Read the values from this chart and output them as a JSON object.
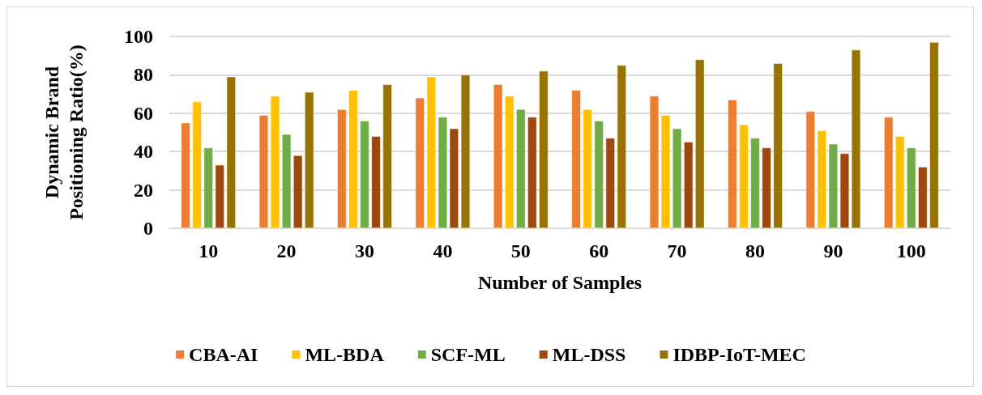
{
  "chart_data": {
    "type": "bar",
    "xlabel": "Number of Samples",
    "ylabel": "Dynamic Brand\nPositioning Ratio(%)",
    "categories": [
      "10",
      "20",
      "30",
      "40",
      "50",
      "60",
      "70",
      "80",
      "90",
      "100"
    ],
    "series": [
      {
        "name": "CBA-AI",
        "color": "#ed7d31",
        "values": [
          55,
          59,
          62,
          68,
          75,
          72,
          69,
          67,
          61,
          58
        ]
      },
      {
        "name": "ML-BDA",
        "color": "#ffc000",
        "values": [
          66,
          69,
          72,
          79,
          69,
          62,
          59,
          54,
          51,
          48
        ]
      },
      {
        "name": "SCF-ML",
        "color": "#70ad47",
        "values": [
          42,
          49,
          56,
          58,
          62,
          56,
          52,
          47,
          44,
          42
        ]
      },
      {
        "name": "ML-DSS",
        "color": "#9e480e",
        "values": [
          33,
          38,
          48,
          52,
          58,
          47,
          45,
          42,
          39,
          32
        ]
      },
      {
        "name": "IDBP-IoT-MEC",
        "color": "#997300",
        "values": [
          79,
          71,
          75,
          80,
          82,
          85,
          88,
          86,
          93,
          97
        ]
      }
    ],
    "ylim": [
      0,
      100
    ],
    "yticks": [
      0,
      20,
      40,
      60,
      80,
      100
    ],
    "grid": "y",
    "legend": "bottom"
  }
}
